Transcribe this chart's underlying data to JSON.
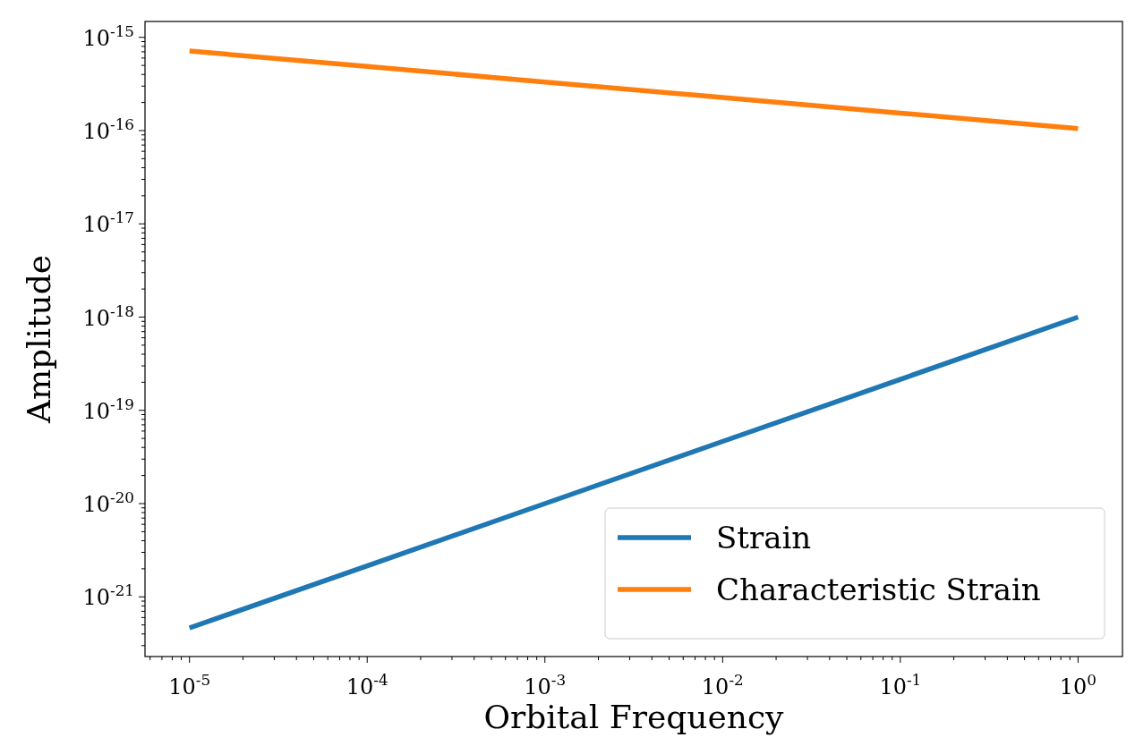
{
  "chart_data": {
    "type": "line",
    "xlabel": "Orbital Frequency",
    "ylabel": "Amplitude",
    "log": "xy",
    "grid": false,
    "legend": "bottom right",
    "x": [
      1e-05,
      0.0001,
      0.001,
      0.01,
      0.1,
      1
    ],
    "series": [
      {
        "name": "Strain",
        "color": "#1f77b4",
        "values": [
          4.64e-22,
          2.15e-21,
          1e-20,
          4.64e-20,
          2.15e-19,
          1e-18
        ]
      },
      {
        "name": "Characteristic Strain",
        "color": "#ff7f0e",
        "values": [
          7.15e-16,
          4.87e-16,
          3.32e-16,
          2.26e-16,
          1.54e-16,
          1.05e-16
        ]
      }
    ],
    "xlim": [
      5.62e-06,
      1.778
    ],
    "ylim": [
      2.29e-22,
      1.48e-15
    ],
    "xticks": [
      {
        "value": 1e-05,
        "label": "10$^{-5}$"
      },
      {
        "value": 0.0001,
        "label": "10$^{-4}$"
      },
      {
        "value": 0.001,
        "label": "10$^{-3}$"
      },
      {
        "value": 0.01,
        "label": "10$^{-2}$"
      },
      {
        "value": 0.1,
        "label": "10$^{-1}$"
      },
      {
        "value": 1,
        "label": "10$^{0}$"
      },
      {
        "value": 6e-06,
        "label": null
      },
      {
        "value": 7e-06,
        "label": null
      },
      {
        "value": 8e-06,
        "label": null
      },
      {
        "value": 9e-06,
        "label": null
      },
      {
        "value": 2e-05,
        "label": null
      },
      {
        "value": 3e-05,
        "label": null
      },
      {
        "value": 4e-05,
        "label": null
      },
      {
        "value": 5e-05,
        "label": null
      },
      {
        "value": 6e-05,
        "label": null
      },
      {
        "value": 7e-05,
        "label": null
      },
      {
        "value": 8e-05,
        "label": null
      },
      {
        "value": 9e-05,
        "label": null
      },
      {
        "value": 0.0002,
        "label": null
      },
      {
        "value": 0.0003,
        "label": null
      },
      {
        "value": 0.0004,
        "label": null
      },
      {
        "value": 0.0005,
        "label": null
      },
      {
        "value": 0.0006,
        "label": null
      },
      {
        "value": 0.0007,
        "label": null
      },
      {
        "value": 0.0008,
        "label": null
      },
      {
        "value": 0.0009,
        "label": null
      },
      {
        "value": 0.002,
        "label": null
      },
      {
        "value": 0.003,
        "label": null
      },
      {
        "value": 0.004,
        "label": null
      },
      {
        "value": 0.005,
        "label": null
      },
      {
        "value": 0.006,
        "label": null
      },
      {
        "value": 0.007,
        "label": null
      },
      {
        "value": 0.008,
        "label": null
      },
      {
        "value": 0.009,
        "label": null
      },
      {
        "value": 0.02,
        "label": null
      },
      {
        "value": 0.03,
        "label": null
      },
      {
        "value": 0.04,
        "label": null
      },
      {
        "value": 0.05,
        "label": null
      },
      {
        "value": 0.06,
        "label": null
      },
      {
        "value": 0.07,
        "label": null
      },
      {
        "value": 0.08,
        "label": null
      },
      {
        "value": 0.09,
        "label": null
      },
      {
        "value": 0.2,
        "label": null
      },
      {
        "value": 0.3,
        "label": null
      },
      {
        "value": 0.4,
        "label": null
      },
      {
        "value": 0.5,
        "label": null
      },
      {
        "value": 0.6,
        "label": null
      },
      {
        "value": 0.7,
        "label": null
      },
      {
        "value": 0.8,
        "label": null
      },
      {
        "value": 0.9,
        "label": null
      }
    ],
    "yticks": [
      {
        "value": 1e-21,
        "label": "10$^{-21}$"
      },
      {
        "value": 1e-20,
        "label": "10$^{-20}$"
      },
      {
        "value": 1e-19,
        "label": "10$^{-19}$"
      },
      {
        "value": 1e-18,
        "label": "10$^{-18}$"
      },
      {
        "value": 1e-17,
        "label": "10$^{-17}$"
      },
      {
        "value": 1e-16,
        "label": "10$^{-16}$"
      },
      {
        "value": 1e-15,
        "label": "10$^{-15}$"
      },
      {
        "value": 3e-22,
        "label": null
      },
      {
        "value": 4e-22,
        "label": null
      },
      {
        "value": 5e-22,
        "label": null
      },
      {
        "value": 6e-22,
        "label": null
      },
      {
        "value": 7e-22,
        "label": null
      },
      {
        "value": 8e-22,
        "label": null
      },
      {
        "value": 9e-22,
        "label": null
      },
      {
        "value": 2e-21,
        "label": null
      },
      {
        "value": 3e-21,
        "label": null
      },
      {
        "value": 4e-21,
        "label": null
      },
      {
        "value": 5e-21,
        "label": null
      },
      {
        "value": 6e-21,
        "label": null
      },
      {
        "value": 7e-21,
        "label": null
      },
      {
        "value": 8e-21,
        "label": null
      },
      {
        "value": 9e-21,
        "label": null
      },
      {
        "value": 2e-20,
        "label": null
      },
      {
        "value": 3e-20,
        "label": null
      },
      {
        "value": 4e-20,
        "label": null
      },
      {
        "value": 5e-20,
        "label": null
      },
      {
        "value": 6e-20,
        "label": null
      },
      {
        "value": 7e-20,
        "label": null
      },
      {
        "value": 8e-20,
        "label": null
      },
      {
        "value": 9e-20,
        "label": null
      },
      {
        "value": 2e-19,
        "label": null
      },
      {
        "value": 3e-19,
        "label": null
      },
      {
        "value": 4e-19,
        "label": null
      },
      {
        "value": 5e-19,
        "label": null
      },
      {
        "value": 6e-19,
        "label": null
      },
      {
        "value": 7e-19,
        "label": null
      },
      {
        "value": 8e-19,
        "label": null
      },
      {
        "value": 9e-19,
        "label": null
      },
      {
        "value": 2e-18,
        "label": null
      },
      {
        "value": 3e-18,
        "label": null
      },
      {
        "value": 4e-18,
        "label": null
      },
      {
        "value": 5e-18,
        "label": null
      },
      {
        "value": 6e-18,
        "label": null
      },
      {
        "value": 7e-18,
        "label": null
      },
      {
        "value": 8e-18,
        "label": null
      },
      {
        "value": 9e-18,
        "label": null
      },
      {
        "value": 2e-17,
        "label": null
      },
      {
        "value": 3e-17,
        "label": null
      },
      {
        "value": 4e-17,
        "label": null
      },
      {
        "value": 5e-17,
        "label": null
      },
      {
        "value": 6e-17,
        "label": null
      },
      {
        "value": 7e-17,
        "label": null
      },
      {
        "value": 8e-17,
        "label": null
      },
      {
        "value": 9e-17,
        "label": null
      },
      {
        "value": 2e-16,
        "label": null
      },
      {
        "value": 3e-16,
        "label": null
      },
      {
        "value": 4e-16,
        "label": null
      },
      {
        "value": 5e-16,
        "label": null
      },
      {
        "value": 6e-16,
        "label": null
      },
      {
        "value": 7e-16,
        "label": null
      },
      {
        "value": 8e-16,
        "label": null
      },
      {
        "value": 9e-16,
        "label": null
      }
    ]
  }
}
